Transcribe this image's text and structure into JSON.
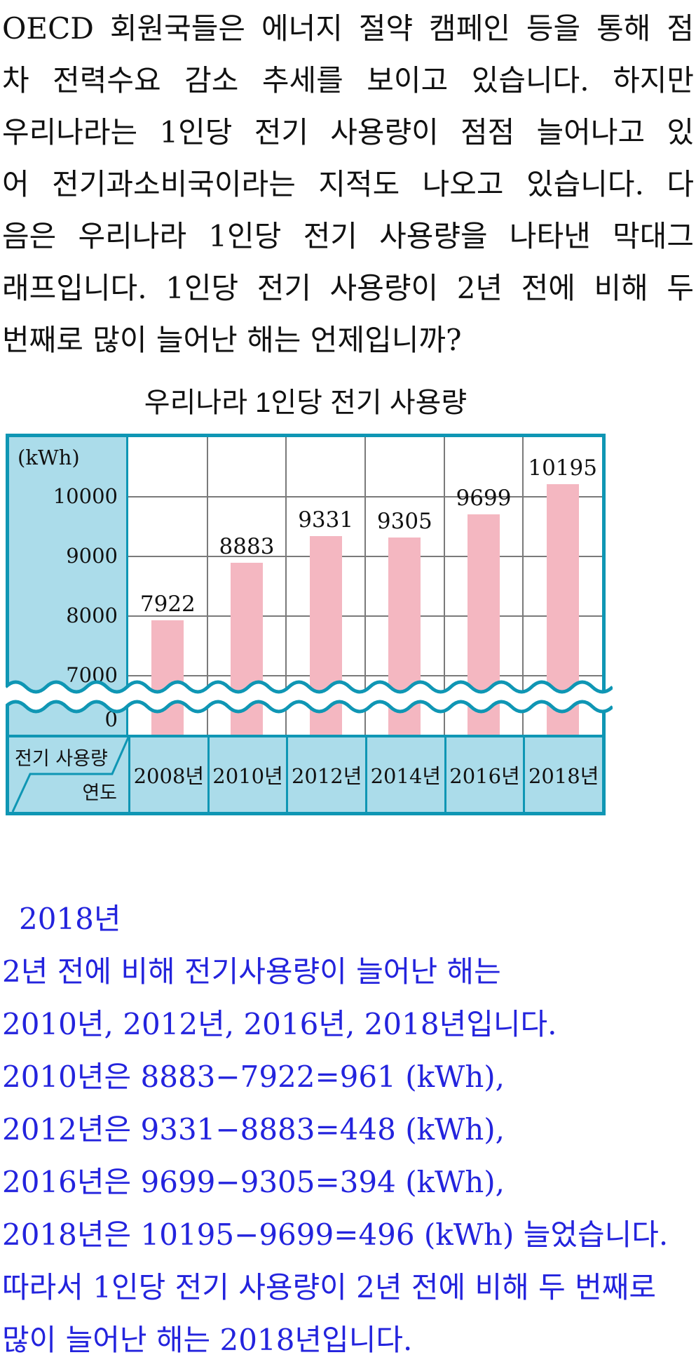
{
  "problem": {
    "lines": [
      "OECD 회원국들은 에너지 절약 캠페인 등을 통해 점",
      "차 전력수요 감소 추세를 보이고 있습니다. 하지만",
      "우리나라는 1인당 전기 사용량이 점점 늘어나고 있",
      "어 전기과소비국이라는 지적도 나오고 있습니다. 다",
      "음은 우리나라 1인당 전기 사용량을 나타낸 막대그",
      "래프입니다. 1인당 전기 사용량이 2년 전에 비해 두",
      "번째로 많이 늘어난 해는 언제입니까?"
    ]
  },
  "chart": {
    "title": "우리나라 1인당 전기 사용량",
    "unit_label": "(kWh)",
    "y_ticks": [
      "10000",
      "9000",
      "8000",
      "7000",
      "0"
    ],
    "corner": {
      "row_label": "전기 사용량",
      "col_label": "연도"
    },
    "years": [
      "2008년",
      "2010년",
      "2012년",
      "2014년",
      "2016년",
      "2018년"
    ],
    "value_labels": [
      "7922",
      "8883",
      "9331",
      "9305",
      "9699",
      "10195"
    ],
    "colors": {
      "frame": "#0f96b4",
      "panel": "#abdcea",
      "bar": "#f4b7c1",
      "grid": "#7a7a7a"
    }
  },
  "chart_data": {
    "type": "bar",
    "title": "우리나라 1인당 전기 사용량",
    "categories": [
      "2008년",
      "2010년",
      "2012년",
      "2014년",
      "2016년",
      "2018년"
    ],
    "values": [
      7922,
      8883,
      9331,
      9305,
      9699,
      10195
    ],
    "xlabel": "연도",
    "ylabel": "(kWh)",
    "yticks": [
      0,
      7000,
      8000,
      9000,
      10000
    ],
    "ylim": [
      0,
      11000
    ],
    "axis_break": true,
    "grid": true,
    "legend": "none"
  },
  "answer": {
    "lines": [
      "2018년",
      "2년 전에 비해 전기사용량이 늘어난 해는",
      "2010년, 2012년, 2016년, 2018년입니다.",
      "2010년은 8883−7922=961 (kWh),",
      "2012년은 9331−8883=448 (kWh),",
      "2016년은 9699−9305=394 (kWh),",
      "2018년은 10195−9699=496 (kWh) 늘었습니다.",
      "따라서 1인당 전기 사용량이 2년 전에 비해 두 번째로",
      "많이 늘어난 해는 2018년입니다."
    ],
    "text_color": "#2323dd"
  }
}
